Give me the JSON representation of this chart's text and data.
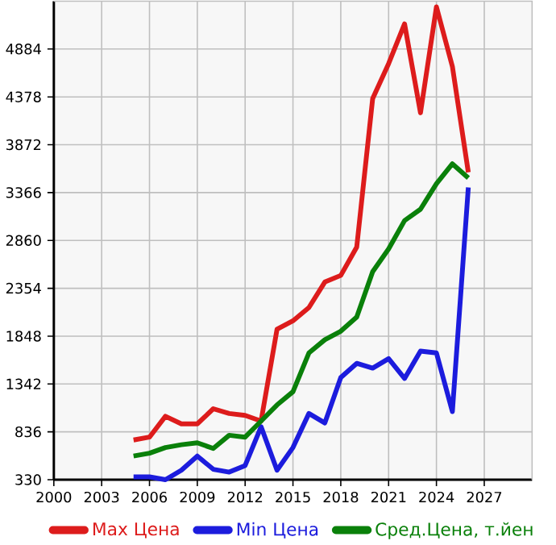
{
  "chart_data": {
    "type": "line",
    "x": [
      2005,
      2006,
      2007,
      2008,
      2009,
      2010,
      2011,
      2012,
      2013,
      2014,
      2015,
      2016,
      2017,
      2018,
      2019,
      2020,
      2021,
      2022,
      2023,
      2024,
      2025,
      2026
    ],
    "series": [
      {
        "name": "Max Цена",
        "color": "#dd1c1c",
        "values": [
          750,
          780,
          1000,
          920,
          920,
          1080,
          1030,
          1010,
          950,
          1920,
          2010,
          2150,
          2420,
          2490,
          2790,
          4360,
          4730,
          5150,
          4210,
          5330,
          4700,
          3580
        ]
      },
      {
        "name": "Min Цена",
        "color": "#1c1cdd",
        "values": [
          360,
          360,
          330,
          430,
          580,
          440,
          410,
          480,
          890,
          430,
          670,
          1030,
          930,
          1410,
          1560,
          1510,
          1610,
          1400,
          1690,
          1670,
          1050,
          3420
        ]
      },
      {
        "name": "Сред.Цена, т.йен",
        "color": "#0a800a",
        "values": [
          580,
          610,
          670,
          700,
          720,
          660,
          800,
          780,
          950,
          1120,
          1260,
          1670,
          1810,
          1900,
          2050,
          2530,
          2770,
          3070,
          3190,
          3460,
          3670,
          3520
        ]
      }
    ],
    "xlim": [
      2000,
      2030
    ],
    "xticks": [
      2000,
      2003,
      2006,
      2009,
      2012,
      2015,
      2018,
      2021,
      2024,
      2027
    ],
    "ylim": [
      330,
      5390
    ],
    "yticks": [
      330,
      836,
      1342,
      1848,
      2354,
      2860,
      3366,
      3872,
      4378,
      4884
    ],
    "grid": true,
    "legend": "bottom",
    "marker": "none",
    "line_style": "solid"
  }
}
